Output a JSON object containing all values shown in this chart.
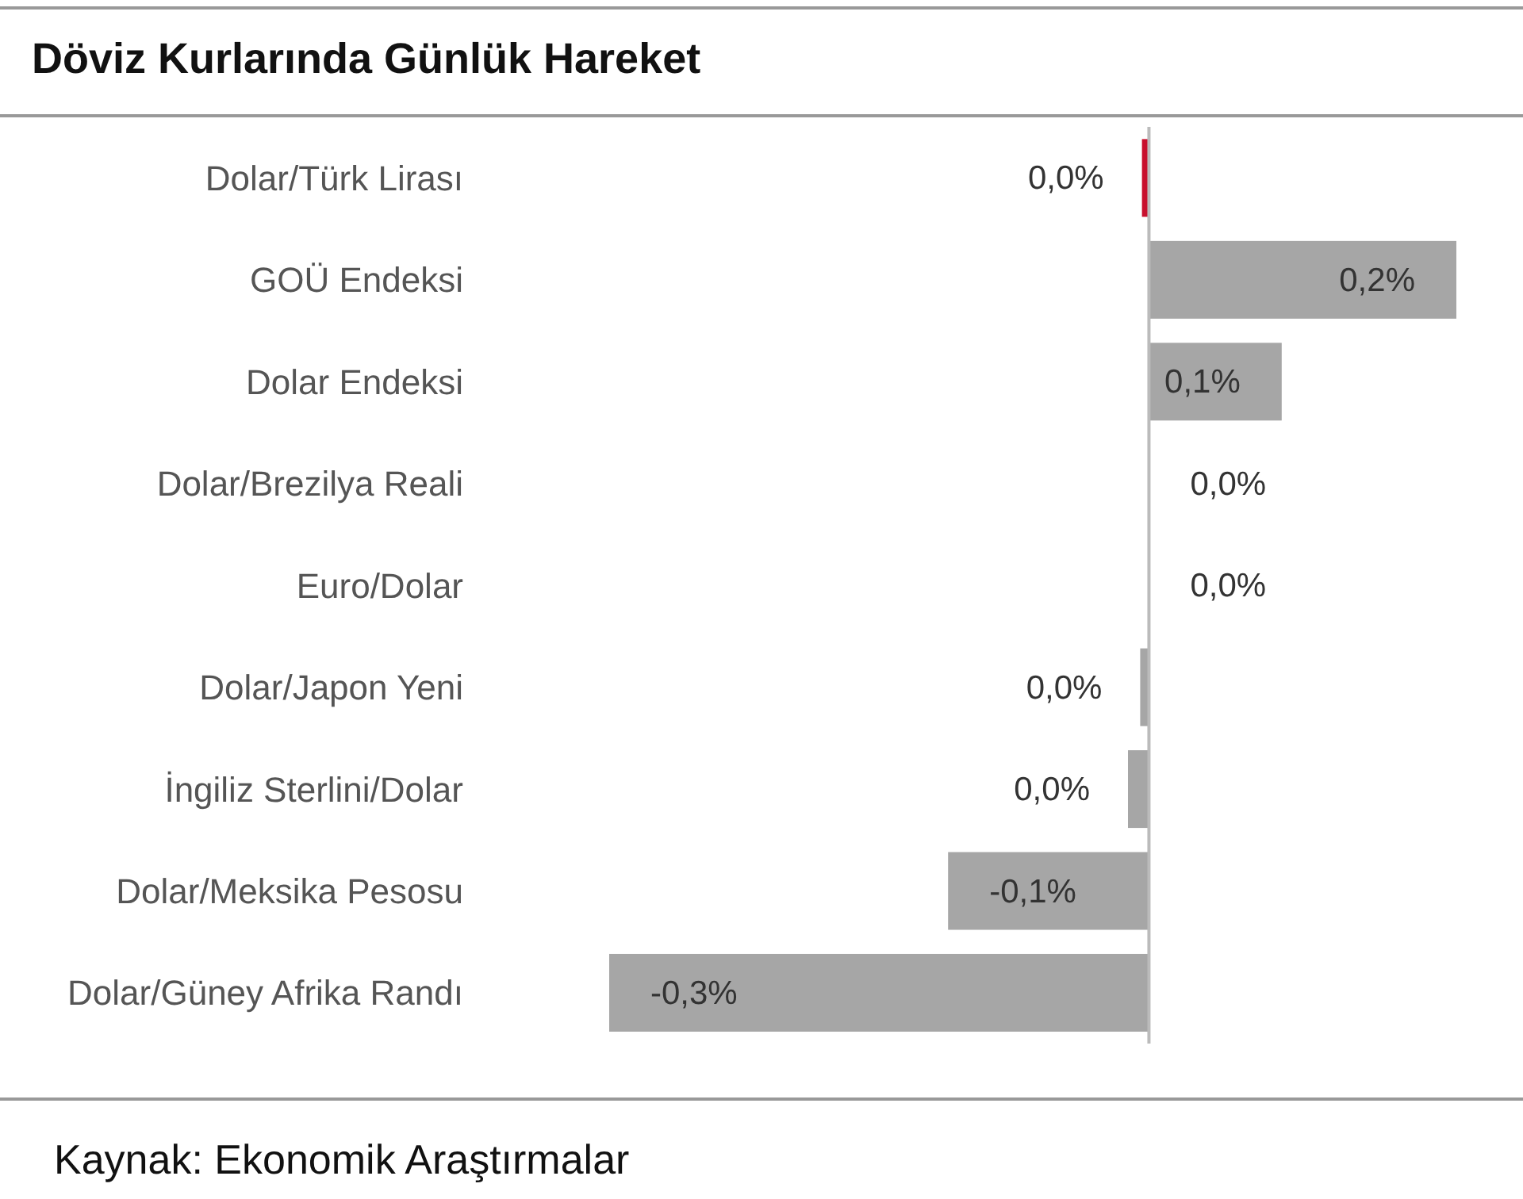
{
  "chart_data": {
    "type": "bar",
    "orientation": "horizontal",
    "title": "Döviz Kurlarında Günlük Hareket",
    "categories": [
      "Dolar/Türk Lirası",
      "GOÜ Endeksi",
      "Dolar Endeksi",
      "Dolar/Brezilya Reali",
      "Euro/Dolar",
      "Dolar/Japon Yeni",
      "İngiliz Sterlini/Dolar",
      "Dolar/Meksika Pesosu",
      "Dolar/Güney Afrika Randı"
    ],
    "values": [
      -0.004,
      0.176,
      0.076,
      0,
      0,
      -0.005,
      -0.012,
      -0.115,
      -0.309
    ],
    "value_labels": [
      "0,0%",
      "0,2%",
      "0,1%",
      "0,0%",
      "0,0%",
      "0,0%",
      "0,0%",
      "-0,1%",
      "-0,3%"
    ],
    "colors": [
      "#c8102e",
      "#a6a6a6",
      "#a6a6a6",
      "#a6a6a6",
      "#a6a6a6",
      "#a6a6a6",
      "#a6a6a6",
      "#a6a6a6",
      "#a6a6a6"
    ],
    "annotations": [
      "Kaynak: Ekonomik Araştırmalar"
    ]
  }
}
